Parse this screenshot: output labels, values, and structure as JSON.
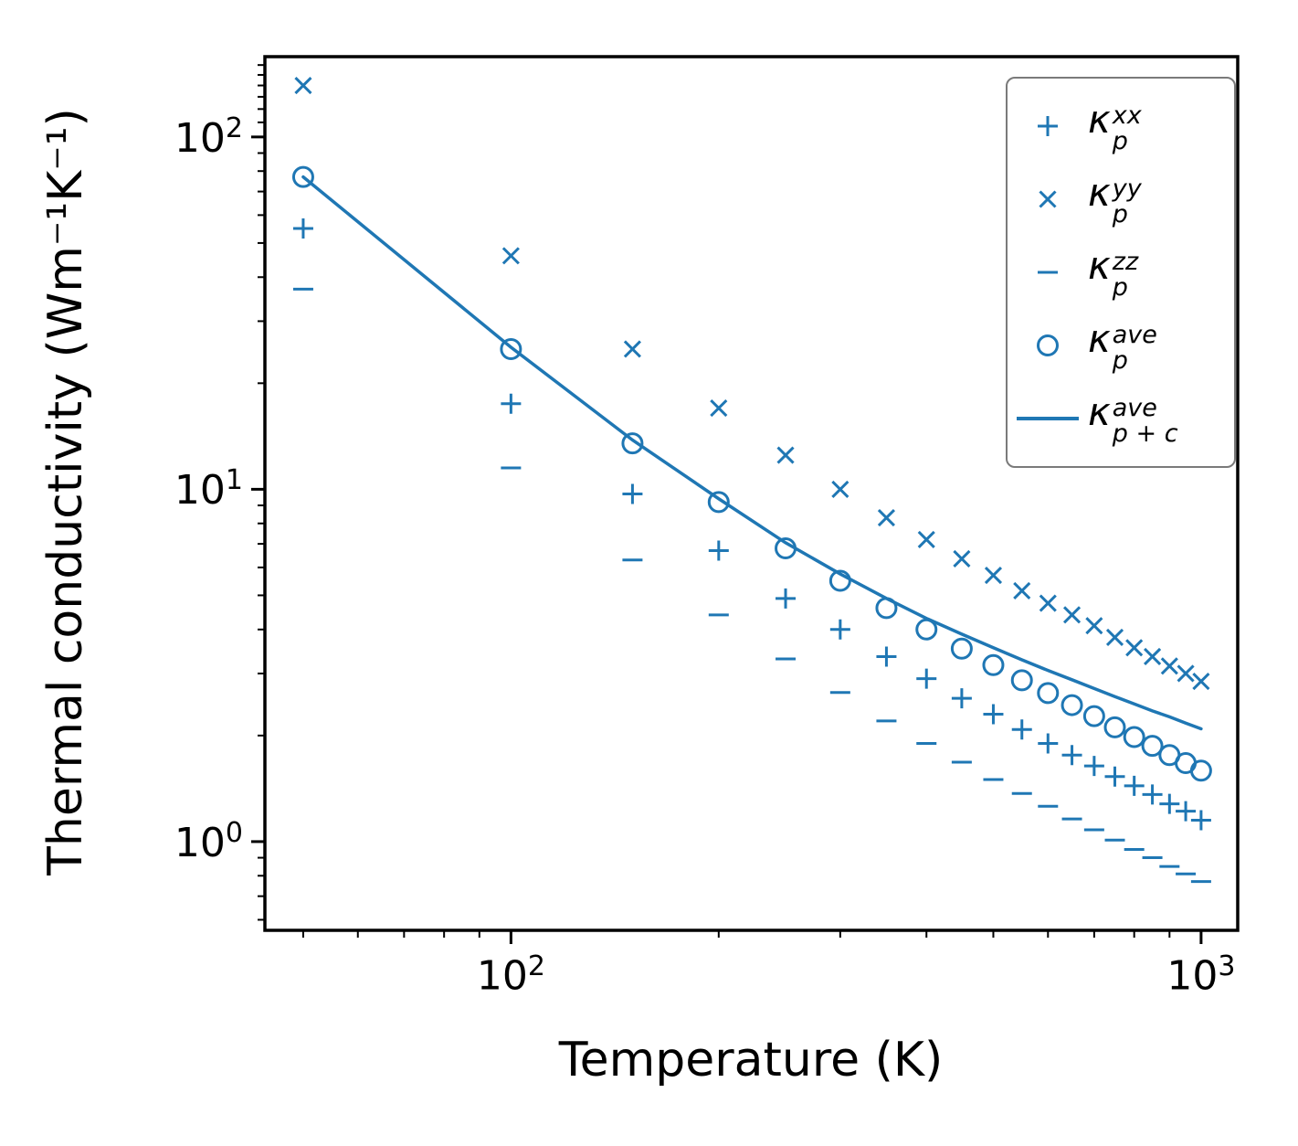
{
  "figure": {
    "background": "#ffffff"
  },
  "chart_data": {
    "type": "scatter",
    "title": "",
    "xlabel": "Temperature (K)",
    "ylabel": "Thermal conductivity (Wm⁻¹K⁻¹)",
    "xscale": "log",
    "yscale": "log",
    "xlim": [
      44,
      1130
    ],
    "ylim": [
      0.56,
      169
    ],
    "grid": false,
    "legend_position": "upper right",
    "color": "#1f77b4",
    "x_major_ticks": [
      {
        "value": 100,
        "mantissa": "10",
        "exp": "2"
      },
      {
        "value": 1000,
        "mantissa": "10",
        "exp": "3"
      }
    ],
    "x_minor_ticks": [
      50,
      60,
      70,
      80,
      90,
      200,
      300,
      400,
      500,
      600,
      700,
      800,
      900
    ],
    "y_major_ticks": [
      {
        "value": 1,
        "mantissa": "10",
        "exp": "0"
      },
      {
        "value": 10,
        "mantissa": "10",
        "exp": "1"
      },
      {
        "value": 100,
        "mantissa": "10",
        "exp": "2"
      }
    ],
    "y_minor_ticks": [
      0.6,
      0.7,
      0.8,
      0.9,
      2,
      3,
      4,
      5,
      6,
      7,
      8,
      9,
      20,
      30,
      40,
      50,
      60,
      70,
      80,
      90,
      110,
      120,
      130,
      140,
      150,
      160
    ],
    "x": [
      50,
      100,
      150,
      200,
      250,
      300,
      350,
      400,
      450,
      500,
      550,
      600,
      650,
      700,
      750,
      800,
      850,
      900,
      950,
      1000
    ],
    "series": [
      {
        "name": "kappa-p-xx",
        "marker": "plus",
        "label": {
          "base": "κ",
          "sub": "p",
          "sup": "xx"
        },
        "values": [
          55,
          17.5,
          9.7,
          6.7,
          4.9,
          4.0,
          3.35,
          2.9,
          2.55,
          2.3,
          2.08,
          1.9,
          1.76,
          1.64,
          1.53,
          1.44,
          1.36,
          1.28,
          1.22,
          1.15
        ]
      },
      {
        "name": "kappa-p-yy",
        "marker": "x",
        "label": {
          "base": "κ",
          "sub": "p",
          "sup": "yy"
        },
        "values": [
          140,
          46,
          25,
          17,
          12.5,
          10,
          8.3,
          7.2,
          6.35,
          5.7,
          5.15,
          4.75,
          4.4,
          4.1,
          3.8,
          3.55,
          3.35,
          3.15,
          3.0,
          2.85
        ]
      },
      {
        "name": "kappa-p-zz",
        "marker": "hline",
        "label": {
          "base": "κ",
          "sub": "p",
          "sup": "zz"
        },
        "values": [
          37,
          11.5,
          6.3,
          4.4,
          3.3,
          2.65,
          2.2,
          1.9,
          1.68,
          1.5,
          1.37,
          1.26,
          1.16,
          1.08,
          1.01,
          0.95,
          0.9,
          0.85,
          0.81,
          0.77
        ]
      },
      {
        "name": "kappa-p-ave",
        "marker": "circle",
        "label": {
          "base": "κ",
          "sub": "p",
          "sup": "ave"
        },
        "values": [
          77,
          25,
          13.5,
          9.2,
          6.8,
          5.5,
          4.6,
          4.0,
          3.53,
          3.17,
          2.87,
          2.64,
          2.44,
          2.27,
          2.11,
          1.98,
          1.87,
          1.76,
          1.67,
          1.59
        ]
      },
      {
        "name": "kappa-p-plus-c-ave",
        "marker": "line",
        "label": {
          "base": "κ",
          "sub": "p + c",
          "sup": "ave"
        },
        "values": [
          77,
          25.3,
          13.8,
          9.4,
          7.05,
          5.75,
          4.9,
          4.3,
          3.88,
          3.55,
          3.28,
          3.06,
          2.88,
          2.72,
          2.58,
          2.46,
          2.35,
          2.26,
          2.17,
          2.09
        ]
      }
    ]
  }
}
